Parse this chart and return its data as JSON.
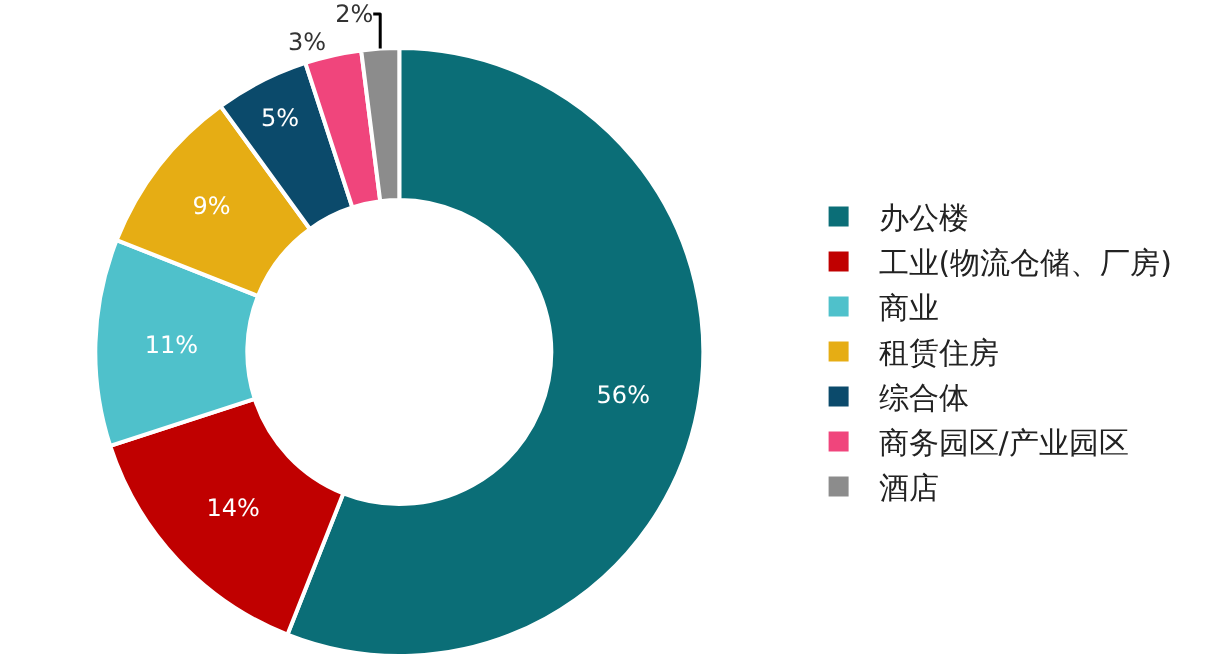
{
  "chart_data": {
    "type": "donut",
    "categories": [
      "办公楼",
      "工业(物流仓储、厂房)",
      "商业",
      "租赁住房",
      "综合体",
      "商务园区/产业园区",
      "酒店"
    ],
    "values": [
      56,
      14,
      11,
      9,
      5,
      3,
      2
    ],
    "colors": [
      "#0b6e77",
      "#c00000",
      "#4fc1cb",
      "#e6ad14",
      "#0b4a6b",
      "#f0457c",
      "#8c8c8c"
    ],
    "value_labels": [
      "56%",
      "14%",
      "11%",
      "9%",
      "5%",
      "3%",
      "2%"
    ],
    "legend": "right"
  }
}
